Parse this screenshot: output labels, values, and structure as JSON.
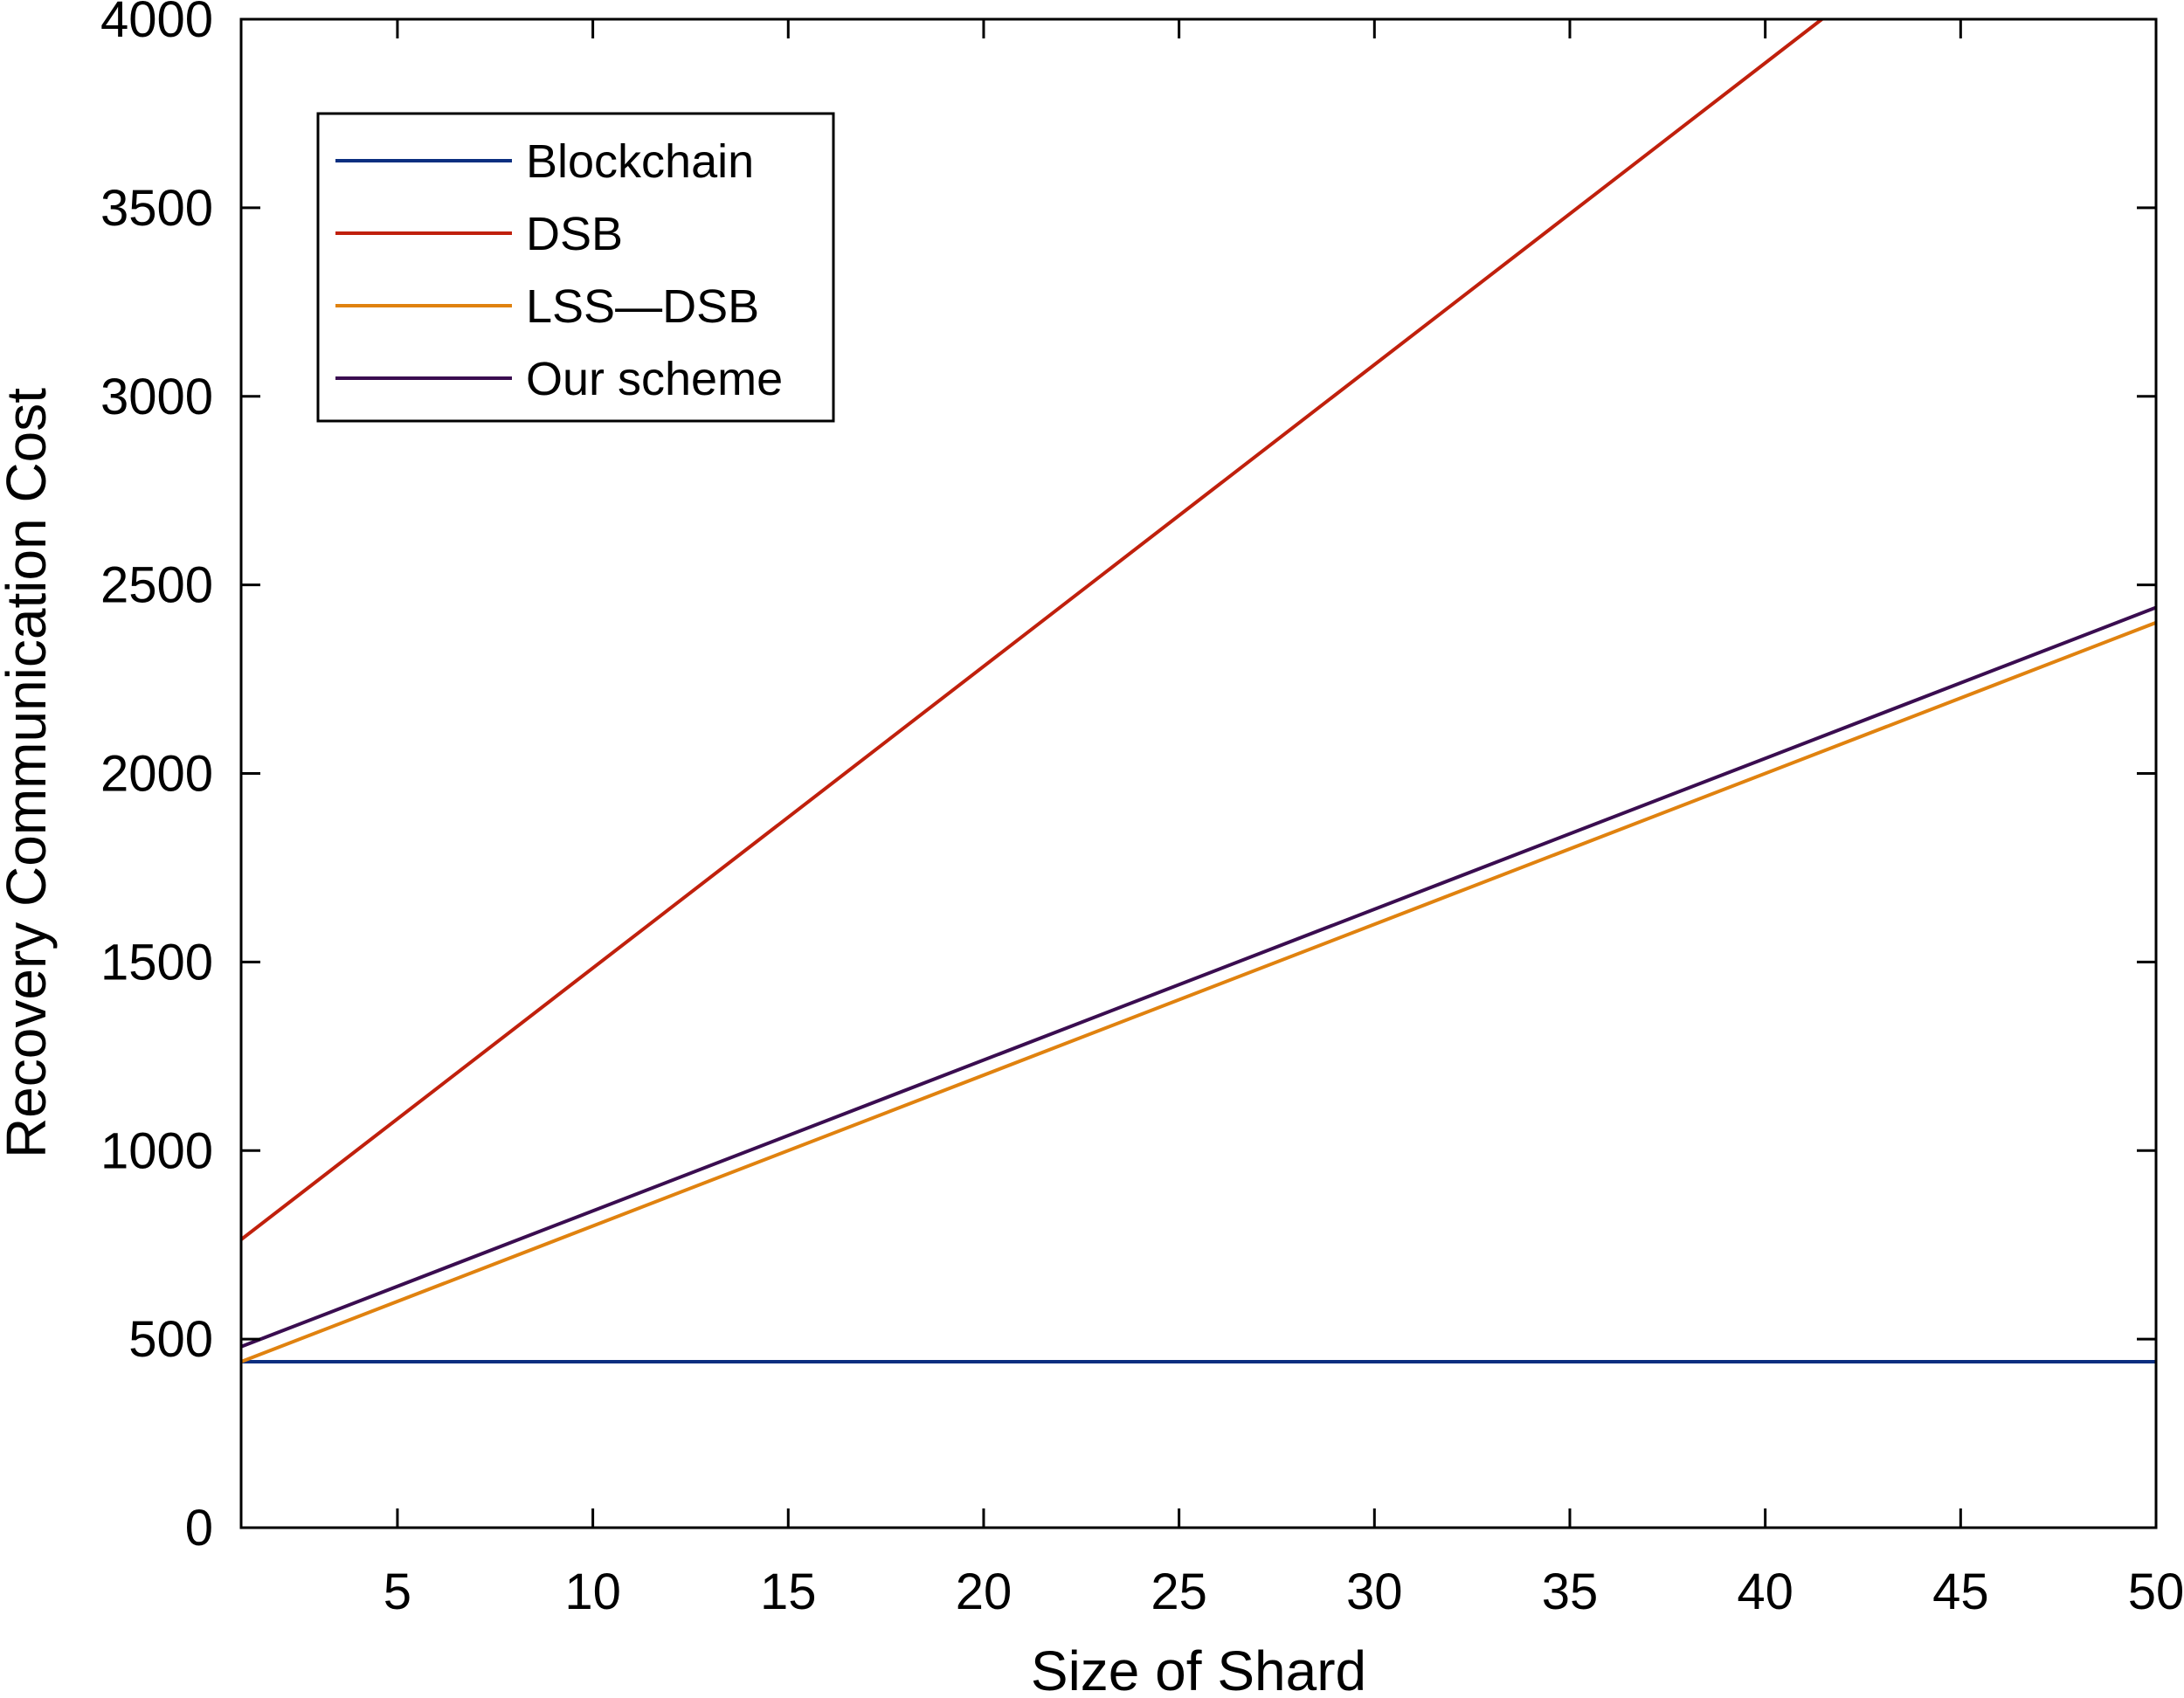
{
  "chart_data": {
    "type": "line",
    "title": "",
    "xlabel": "Size of Shard",
    "ylabel": "Recovery Communication Cost",
    "xlim": [
      1,
      50
    ],
    "ylim": [
      0,
      4000
    ],
    "xticks": [
      5,
      10,
      15,
      20,
      25,
      30,
      35,
      40,
      45,
      50
    ],
    "yticks": [
      0,
      500,
      1000,
      1500,
      2000,
      2500,
      3000,
      3500,
      4000
    ],
    "grid": false,
    "legend_position": "top-left",
    "series": [
      {
        "name": "Blockchain",
        "color": "#0b2f80",
        "x": [
          1,
          50
        ],
        "y": [
          440,
          440
        ]
      },
      {
        "name": "DSB",
        "color": "#c0200c",
        "x": [
          1,
          50
        ],
        "y": [
          764,
          4684
        ]
      },
      {
        "name": " LSS—DSB",
        "color": "#e0820f",
        "x": [
          1,
          50
        ],
        "y": [
          440,
          2400
        ]
      },
      {
        "name": "Our scheme",
        "color": "#3a0d50",
        "x": [
          1,
          50
        ],
        "y": [
          480,
          2440
        ]
      }
    ]
  }
}
